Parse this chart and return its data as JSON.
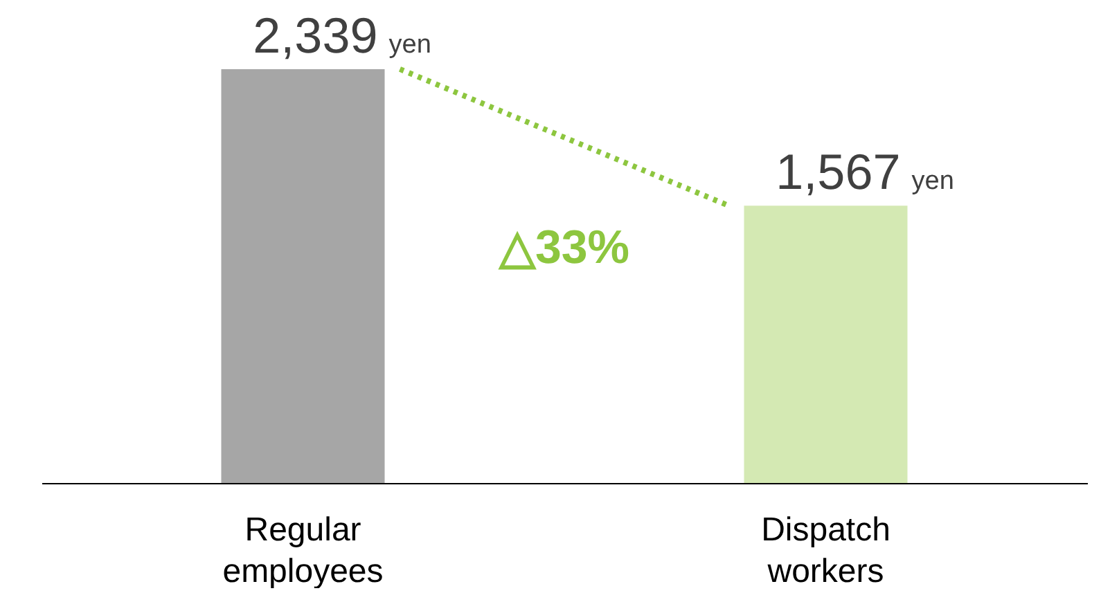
{
  "chart_data": {
    "type": "bar",
    "categories": [
      "Regular employees",
      "Dispatch workers"
    ],
    "values": [
      2339,
      1567
    ],
    "colors": [
      "#a6a6a6",
      "#d4e9b3"
    ],
    "value_labels": [
      "2,339",
      "1,567"
    ],
    "annotations": [
      "△33%",
      "yen",
      "yen"
    ],
    "grid": false
  }
}
